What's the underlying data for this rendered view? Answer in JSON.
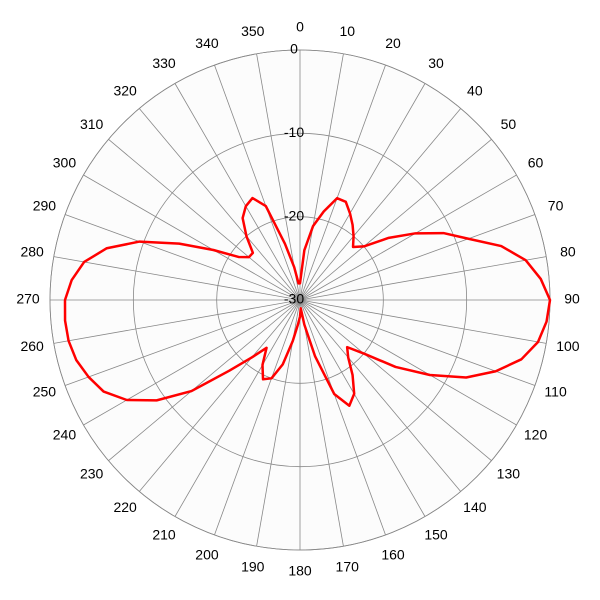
{
  "chart_data": {
    "type": "polar",
    "rlim": [
      -30,
      0
    ],
    "rticks": [
      -30,
      -20,
      -10,
      0
    ],
    "thetaticks": [
      0,
      10,
      20,
      30,
      40,
      50,
      60,
      70,
      80,
      90,
      100,
      110,
      120,
      130,
      140,
      150,
      160,
      170,
      180,
      190,
      200,
      210,
      220,
      230,
      240,
      250,
      260,
      270,
      280,
      290,
      300,
      310,
      320,
      330,
      340,
      350
    ],
    "direction": "clockwise",
    "zero_at": "top",
    "grid": true,
    "theta": [
      0,
      5,
      10,
      15,
      20,
      25,
      30,
      35,
      40,
      45,
      50,
      55,
      60,
      65,
      70,
      75,
      80,
      85,
      90,
      95,
      100,
      105,
      110,
      115,
      120,
      125,
      130,
      135,
      140,
      145,
      150,
      155,
      160,
      165,
      170,
      175,
      180,
      185,
      190,
      195,
      200,
      205,
      210,
      215,
      220,
      225,
      230,
      235,
      240,
      245,
      250,
      255,
      260,
      265,
      270,
      275,
      280,
      285,
      290,
      295,
      300,
      305,
      310,
      315,
      320,
      325,
      330,
      335,
      340,
      345,
      350,
      355
    ],
    "series": [
      {
        "color": "#ff0000",
        "values": [
          -28,
          -24,
          -21,
          -19,
          -17,
          -17,
          -18,
          -19,
          -20,
          -21,
          -20,
          -17,
          -14,
          -11,
          -8.5,
          -5,
          -2.5,
          -1,
          0,
          -0.3,
          -1,
          -2.5,
          -5,
          -8,
          -12,
          -16,
          -20,
          -22,
          -21,
          -19,
          -17,
          -16,
          -18,
          -23,
          -27,
          -29,
          -28,
          -27,
          -25,
          -22,
          -20,
          -19.5,
          -21,
          -23,
          -21,
          -18,
          -13,
          -9,
          -6,
          -4,
          -3,
          -2.2,
          -1.8,
          -1.7,
          -1.8,
          -2.5,
          -3.7,
          -6,
          -9.5,
          -14,
          -18,
          -21,
          -22,
          -22,
          -20,
          -18,
          -17,
          -16.5,
          -18,
          -23,
          -26,
          -28
        ]
      }
    ]
  }
}
